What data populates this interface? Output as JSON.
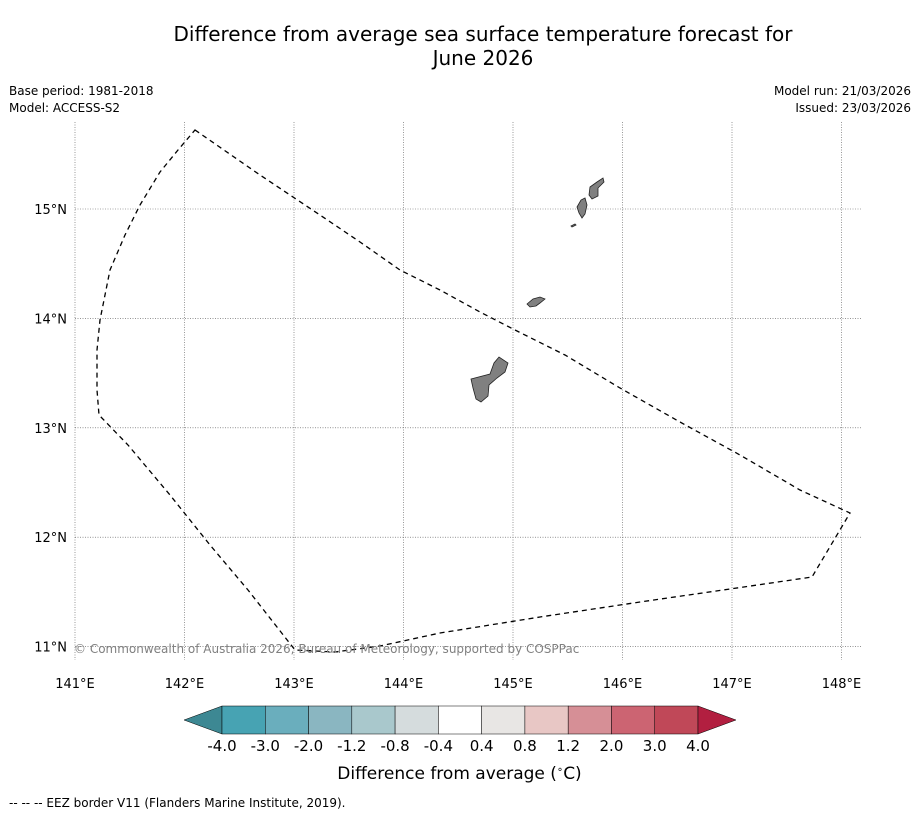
{
  "title_line1": "Difference from average sea surface temperature forecast for",
  "title_line2": "June 2026",
  "info_left": {
    "base_period": "Base period: 1981-2018",
    "model": "Model: ACCESS-S2"
  },
  "info_right": {
    "model_run": "Model run: 21/03/2026",
    "issued": "Issued: 23/03/2026"
  },
  "map": {
    "lon_ticks": [
      "141°E",
      "142°E",
      "143°E",
      "144°E",
      "145°E",
      "146°E",
      "147°E",
      "148°E"
    ],
    "lat_ticks": [
      "15°N",
      "14°N",
      "13°N",
      "12°N",
      "11°N"
    ],
    "lon_values": [
      141,
      142,
      143,
      144,
      145,
      146,
      147,
      148
    ],
    "lat_values": [
      15,
      14,
      13,
      12,
      11
    ],
    "extent": {
      "lon_min": 140.9,
      "lon_max": 148.2,
      "lat_min": 10.85,
      "lat_max": 15.8
    },
    "copyright": "© Commonwealth of Australia 2026, Bureau of Meteorology, supported by COSPPac",
    "land_color": "#808080"
  },
  "colorbar": {
    "tick_labels": [
      "-4.0",
      "-3.0",
      "-2.0",
      "-1.2",
      "-0.8",
      "-0.4",
      "0.4",
      "0.8",
      "1.2",
      "2.0",
      "3.0",
      "4.0"
    ],
    "colors": [
      "#47a3b3",
      "#6aaebd",
      "#8ab6c1",
      "#a9c8cc",
      "#d5dcdd",
      "#ffffff",
      "#e8e6e4",
      "#e8c7c5",
      "#d68f96",
      "#cc6472",
      "#c04858"
    ],
    "under_color": "#3d8893",
    "over_color": "#b21f40",
    "label": "Difference from average (",
    "label_unit": "C)",
    "label_degree": "∘"
  },
  "footer": "-- -- -- EEZ border V11 (Flanders Marine Institute, 2019)."
}
